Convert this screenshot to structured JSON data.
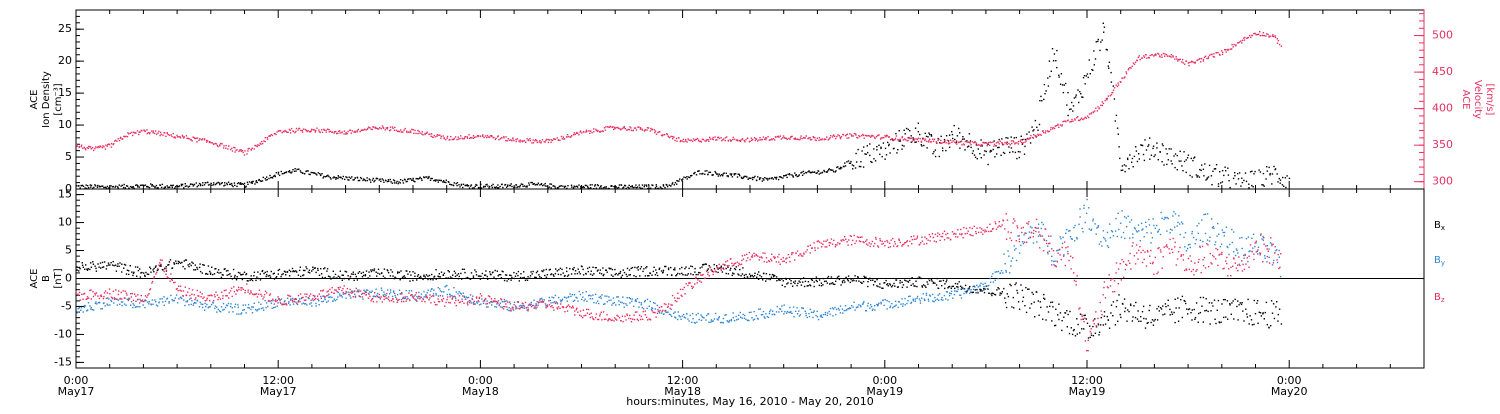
{
  "colors": {
    "black": "#000000",
    "pink": "#e8305f",
    "blue": "#2e86d6"
  },
  "xaxis": {
    "start": "2010-05-17T00:00",
    "end": "2010-05-20T08:00",
    "ticks": [
      {
        "t": 0,
        "time": "0:00",
        "day": "May17"
      },
      {
        "t": 12,
        "time": "12:00",
        "day": "May17"
      },
      {
        "t": 24,
        "time": "0:00",
        "day": "May18"
      },
      {
        "t": 36,
        "time": "12:00",
        "day": "May18"
      },
      {
        "t": 48,
        "time": "0:00",
        "day": "May19"
      },
      {
        "t": 60,
        "time": "12:00",
        "day": "May19"
      },
      {
        "t": 72,
        "time": "0:00",
        "day": "May20"
      }
    ],
    "label": "hours:minutes, May 16, 2010 - May 20, 2010"
  },
  "chart_data": [
    {
      "type": "scatter",
      "panel": "top",
      "ylabel": {
        "line1": "ACE",
        "line2": "Ion Density",
        "line3": "[cm⁻³]"
      },
      "ylim": [
        0,
        28
      ],
      "yticks": [
        "0",
        "5",
        "10",
        "15",
        "20",
        "25"
      ],
      "y2label": {
        "line1": "ACE",
        "line2": "Velocity",
        "line3": "[km/s]"
      },
      "y2lim": [
        290,
        535
      ],
      "y2ticks": [
        "300",
        "350",
        "400",
        "450",
        "500"
      ],
      "series": [
        {
          "axis": "left",
          "color": "black",
          "x": [
            0,
            2,
            4,
            6,
            8,
            10,
            12,
            13,
            15,
            17,
            19,
            21,
            23,
            25,
            27,
            29,
            31,
            33,
            35,
            36,
            37,
            39,
            41,
            43,
            45,
            46,
            47,
            48,
            49,
            50,
            51,
            52,
            53,
            54,
            55,
            56,
            57,
            58,
            59,
            60,
            61,
            62,
            63,
            64,
            65,
            66,
            67,
            68,
            69,
            70,
            71,
            72
          ],
          "y": [
            0.5,
            0.4,
            0.6,
            0.5,
            1.0,
            0.7,
            2.5,
            3.0,
            2.0,
            1.6,
            1.2,
            1.8,
            0.6,
            0.5,
            0.8,
            0.4,
            0.5,
            0.4,
            0.5,
            1.6,
            2.8,
            2.2,
            1.5,
            2.5,
            3.0,
            4.5,
            5.5,
            6.0,
            8.0,
            9.0,
            6.0,
            8.5,
            7.5,
            5.5,
            7.0,
            6.5,
            10.0,
            22.0,
            12.0,
            18.0,
            25.0,
            4.0,
            6.0,
            6.5,
            5.0,
            4.0,
            2.5,
            2.0,
            1.0,
            1.2,
            2.5,
            1.5
          ]
        },
        {
          "axis": "right",
          "color": "pink",
          "x": [
            0,
            1,
            2,
            3,
            4,
            6,
            8,
            10,
            12,
            14,
            16,
            18,
            20,
            22,
            24,
            26,
            28,
            30,
            32,
            34,
            36,
            38,
            40,
            42,
            44,
            46,
            48,
            50,
            52,
            54,
            56,
            58,
            59,
            60,
            61,
            62,
            63,
            64,
            65,
            66,
            67,
            68,
            69,
            70,
            71,
            71.5
          ],
          "y": [
            350,
            345,
            350,
            365,
            370,
            363,
            355,
            340,
            370,
            372,
            368,
            375,
            370,
            360,
            364,
            358,
            356,
            368,
            375,
            372,
            356,
            360,
            358,
            362,
            360,
            364,
            362,
            358,
            355,
            352,
            355,
            375,
            385,
            390,
            410,
            440,
            470,
            475,
            472,
            462,
            470,
            478,
            492,
            505,
            500,
            488
          ]
        }
      ]
    },
    {
      "type": "scatter",
      "panel": "bottom",
      "ylabel": {
        "line1": "ACE",
        "line2": "B",
        "line3": "[nT]"
      },
      "ylim": [
        -16,
        16
      ],
      "yticks": [
        "-15",
        "-10",
        "-5",
        "0",
        "5",
        "10",
        "15"
      ],
      "legend": [
        {
          "name": "B",
          "sub": "x",
          "color": "black"
        },
        {
          "name": "B",
          "sub": "y",
          "color": "blue"
        },
        {
          "name": "B",
          "sub": "z",
          "color": "pink"
        }
      ],
      "series": [
        {
          "name": "Bx",
          "color": "black",
          "x": [
            0,
            2,
            4,
            6,
            8,
            10,
            12,
            14,
            16,
            18,
            20,
            22,
            24,
            26,
            28,
            30,
            32,
            34,
            36,
            38,
            40,
            42,
            44,
            46,
            48,
            50,
            52,
            54,
            56,
            58,
            60,
            62,
            64,
            66,
            68,
            70,
            71.5
          ],
          "y": [
            2.0,
            2.5,
            1.0,
            3.0,
            1.5,
            0.5,
            1.0,
            1.5,
            0.5,
            1.0,
            0.5,
            1.0,
            0.8,
            0.5,
            1.0,
            1.5,
            1.0,
            1.5,
            1.5,
            2.0,
            1.0,
            -0.5,
            -0.5,
            0.0,
            -1.0,
            -0.5,
            -1.0,
            -2.0,
            -3.0,
            -6.0,
            -9.0,
            -5.0,
            -7.0,
            -5.0,
            -6.0,
            -6.0,
            -6.5
          ]
        },
        {
          "name": "By",
          "color": "blue",
          "x": [
            0,
            2,
            4,
            6,
            8,
            10,
            12,
            14,
            16,
            18,
            20,
            22,
            24,
            26,
            28,
            30,
            32,
            34,
            36,
            38,
            40,
            42,
            44,
            46,
            48,
            50,
            52,
            54,
            55,
            56,
            57,
            58,
            59,
            60,
            61,
            62,
            63,
            64,
            65,
            66,
            67,
            68,
            69,
            70,
            71,
            71.5
          ],
          "y": [
            -5.5,
            -4.0,
            -4.5,
            -3.5,
            -5.0,
            -5.5,
            -4.0,
            -4.0,
            -3.0,
            -2.5,
            -3.0,
            -2.0,
            -4.0,
            -5.0,
            -4.0,
            -3.0,
            -4.0,
            -4.5,
            -7.0,
            -7.0,
            -6.5,
            -5.5,
            -6.5,
            -5.0,
            -4.5,
            -3.5,
            -3.0,
            -1.0,
            2.0,
            6.0,
            9.0,
            5.0,
            8.0,
            12.0,
            7.0,
            10.0,
            8.0,
            9.0,
            11.0,
            6.0,
            9.5,
            8.0,
            5.0,
            6.0,
            4.0,
            2.0
          ]
        },
        {
          "name": "Bz",
          "color": "pink",
          "x": [
            0,
            2,
            4,
            5,
            6,
            8,
            10,
            12,
            14,
            16,
            18,
            20,
            22,
            24,
            26,
            28,
            30,
            32,
            34,
            35,
            36,
            38,
            40,
            42,
            44,
            46,
            48,
            50,
            52,
            54,
            55,
            56,
            57,
            58,
            59,
            60,
            61,
            62,
            63,
            64,
            65,
            66,
            67,
            68,
            69,
            70,
            71,
            71.5
          ],
          "y": [
            -3.0,
            -2.5,
            -3.5,
            3.0,
            -2.0,
            -3.5,
            -1.5,
            -4.0,
            -3.0,
            -2.0,
            -3.5,
            -3.0,
            -4.0,
            -3.5,
            -5.0,
            -4.5,
            -6.0,
            -7.0,
            -6.5,
            -5.0,
            -2.0,
            2.0,
            4.0,
            3.5,
            6.0,
            7.0,
            6.5,
            7.0,
            8.0,
            9.0,
            10.0,
            8.0,
            9.0,
            4.0,
            5.0,
            -12.0,
            -3.0,
            2.0,
            5.0,
            3.0,
            6.0,
            2.0,
            4.0,
            3.0,
            2.0,
            6.0,
            5.0,
            3.0
          ]
        }
      ]
    }
  ]
}
